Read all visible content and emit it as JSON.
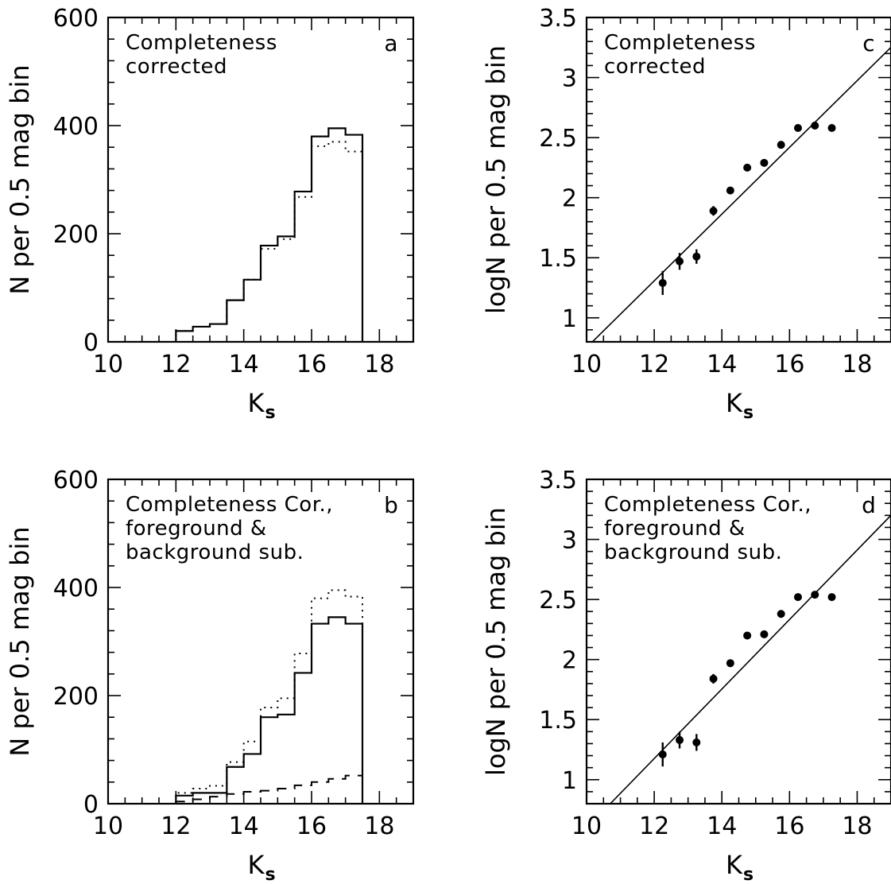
{
  "chart_data": [
    {
      "panel": "a",
      "type": "histogram",
      "annotation": [
        "Completeness",
        "corrected"
      ],
      "panel_letter": "a",
      "xlabel": "K",
      "xlabel_sub": "s",
      "ylabel": "N per 0.5 mag bin",
      "xlim": [
        10,
        19
      ],
      "ylim": [
        0,
        600
      ],
      "xticks": [
        "10",
        "12",
        "14",
        "16",
        "18"
      ],
      "yticks": [
        "0",
        "200",
        "400",
        "600"
      ],
      "bin_edges": [
        12,
        12.5,
        13,
        13.5,
        14,
        14.5,
        15,
        15.5,
        16,
        16.5,
        17,
        17.5
      ],
      "series": [
        {
          "style": "solid",
          "values": [
            20,
            28,
            33,
            77,
            115,
            178,
            195,
            278,
            380,
            395,
            383
          ]
        },
        {
          "style": "dotted",
          "values": [
            20,
            28,
            33,
            77,
            115,
            172,
            190,
            268,
            362,
            370,
            352
          ]
        }
      ]
    },
    {
      "panel": "b",
      "type": "histogram",
      "annotation": [
        "Completeness Cor.,",
        "foreground &",
        "background sub."
      ],
      "panel_letter": "b",
      "xlabel": "K",
      "xlabel_sub": "s",
      "ylabel": "N per 0.5 mag bin",
      "xlim": [
        10,
        19
      ],
      "ylim": [
        0,
        600
      ],
      "xticks": [
        "10",
        "12",
        "14",
        "16",
        "18"
      ],
      "yticks": [
        "0",
        "200",
        "400",
        "600"
      ],
      "bin_edges": [
        12,
        12.5,
        13,
        13.5,
        14,
        14.5,
        15,
        15.5,
        16,
        16.5,
        17,
        17.5
      ],
      "series": [
        {
          "style": "solid",
          "values": [
            15,
            20,
            20,
            68,
            92,
            160,
            165,
            242,
            333,
            345,
            333
          ]
        },
        {
          "style": "dotted",
          "values": [
            20,
            28,
            33,
            77,
            115,
            178,
            195,
            278,
            380,
            395,
            383
          ]
        },
        {
          "style": "dashed",
          "values": [
            4,
            8,
            13,
            18,
            22,
            24,
            28,
            34,
            40,
            46,
            52
          ]
        }
      ]
    },
    {
      "panel": "c",
      "type": "scatter",
      "annotation": [
        "Completeness",
        "corrected"
      ],
      "panel_letter": "c",
      "xlabel": "K",
      "xlabel_sub": "s",
      "ylabel": "logN per 0.5 mag bin",
      "xlim": [
        10,
        19
      ],
      "ylim": [
        0.8,
        3.5
      ],
      "xticks": [
        "10",
        "12",
        "14",
        "16",
        "18"
      ],
      "yticks": [
        "1",
        "1.5",
        "2",
        "2.5",
        "3",
        "3.5"
      ],
      "points": [
        {
          "x": 12.25,
          "y": 1.29,
          "err": 0.1
        },
        {
          "x": 12.75,
          "y": 1.47,
          "err": 0.07
        },
        {
          "x": 13.25,
          "y": 1.51,
          "err": 0.06
        },
        {
          "x": 13.75,
          "y": 1.89,
          "err": 0.04
        },
        {
          "x": 14.25,
          "y": 2.06,
          "err": 0.03
        },
        {
          "x": 14.75,
          "y": 2.25,
          "err": 0.02
        },
        {
          "x": 15.25,
          "y": 2.29,
          "err": 0.02
        },
        {
          "x": 15.75,
          "y": 2.44,
          "err": 0.02
        },
        {
          "x": 16.25,
          "y": 2.58,
          "err": 0.02
        },
        {
          "x": 16.75,
          "y": 2.6,
          "err": 0.02
        },
        {
          "x": 17.25,
          "y": 2.58,
          "err": 0.02
        }
      ],
      "fit_line": {
        "x": [
          10.1,
          19.1
        ],
        "y": [
          0.78,
          3.28
        ]
      }
    },
    {
      "panel": "d",
      "type": "scatter",
      "annotation": [
        "Completeness Cor.,",
        "foreground &",
        "background sub."
      ],
      "panel_letter": "d",
      "xlabel": "K",
      "xlabel_sub": "s",
      "ylabel": "logN per 0.5 mag bin",
      "xlim": [
        10,
        19
      ],
      "ylim": [
        0.8,
        3.5
      ],
      "xticks": [
        "10",
        "12",
        "14",
        "16",
        "18"
      ],
      "yticks": [
        "1",
        "1.5",
        "2",
        "2.5",
        "3",
        "3.5"
      ],
      "points": [
        {
          "x": 12.25,
          "y": 1.21,
          "err": 0.1
        },
        {
          "x": 12.75,
          "y": 1.33,
          "err": 0.07
        },
        {
          "x": 13.25,
          "y": 1.31,
          "err": 0.07
        },
        {
          "x": 13.75,
          "y": 1.84,
          "err": 0.04
        },
        {
          "x": 14.25,
          "y": 1.97,
          "err": 0.03
        },
        {
          "x": 14.75,
          "y": 2.2,
          "err": 0.02
        },
        {
          "x": 15.25,
          "y": 2.21,
          "err": 0.02
        },
        {
          "x": 15.75,
          "y": 2.38,
          "err": 0.02
        },
        {
          "x": 16.25,
          "y": 2.52,
          "err": 0.02
        },
        {
          "x": 16.75,
          "y": 2.54,
          "err": 0.02
        },
        {
          "x": 17.25,
          "y": 2.52,
          "err": 0.02
        }
      ],
      "fit_line": {
        "x": [
          10.7,
          19.1
        ],
        "y": [
          0.8,
          3.23
        ]
      }
    }
  ]
}
